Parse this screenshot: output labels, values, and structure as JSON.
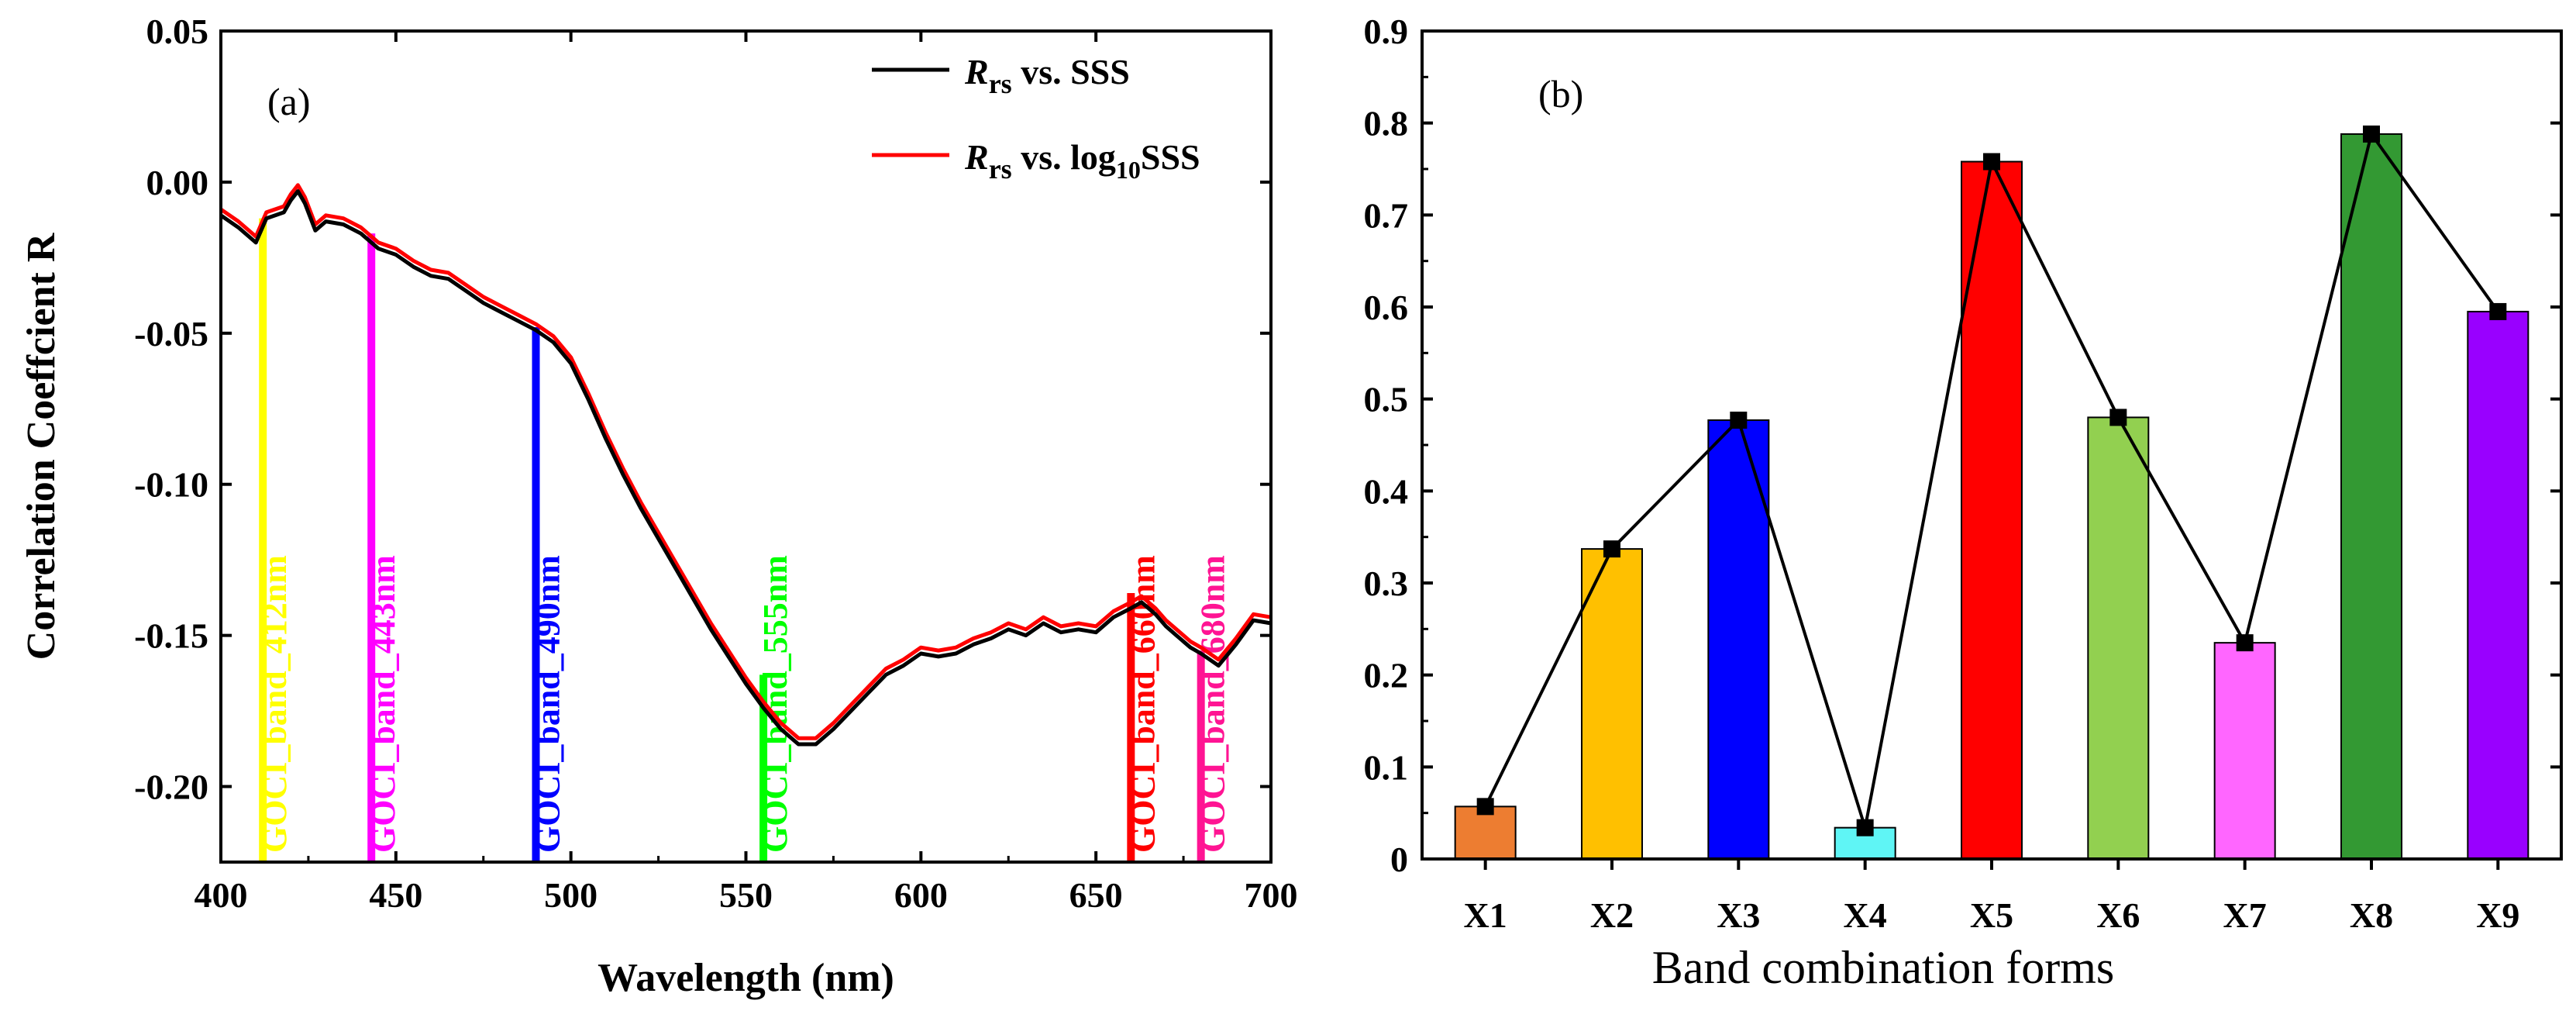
{
  "chart_data": [
    {
      "type": "line",
      "panel_label": "(a)",
      "xlabel": "Wavelength (nm)",
      "ylabel": "Correlation Coeffcient R",
      "xlim": [
        400,
        700
      ],
      "ylim": [
        -0.225,
        0.05
      ],
      "xticks": [
        400,
        450,
        500,
        550,
        600,
        650,
        700
      ],
      "yticks": [
        -0.2,
        -0.15,
        -0.1,
        -0.05,
        0.0,
        0.05
      ],
      "ytick_labels": [
        "-0.20",
        "-0.15",
        "-0.10",
        "-0.05",
        "0.00",
        "0.05"
      ],
      "legend": {
        "placement": "top-right"
      },
      "series": [
        {
          "name": "R_rs vs. SSS",
          "legend_main": "R",
          "legend_sub": "rs",
          "legend_rest": " vs. SSS",
          "color": "#000000",
          "x": [
            400,
            405,
            410,
            413,
            418,
            420,
            422,
            424,
            427,
            430,
            435,
            440,
            445,
            450,
            455,
            460,
            465,
            470,
            475,
            480,
            485,
            490,
            495,
            500,
            505,
            510,
            515,
            520,
            525,
            530,
            535,
            540,
            545,
            550,
            555,
            560,
            565,
            570,
            575,
            580,
            585,
            590,
            595,
            600,
            605,
            610,
            615,
            620,
            625,
            630,
            635,
            640,
            645,
            650,
            655,
            660,
            663,
            667,
            670,
            673,
            677,
            680,
            685,
            690,
            695,
            700
          ],
          "y": [
            -0.011,
            -0.015,
            -0.02,
            -0.012,
            -0.01,
            -0.006,
            -0.003,
            -0.007,
            -0.016,
            -0.013,
            -0.014,
            -0.017,
            -0.022,
            -0.024,
            -0.028,
            -0.031,
            -0.032,
            -0.036,
            -0.04,
            -0.043,
            -0.046,
            -0.049,
            -0.053,
            -0.06,
            -0.072,
            -0.085,
            -0.097,
            -0.108,
            -0.118,
            -0.128,
            -0.138,
            -0.148,
            -0.157,
            -0.166,
            -0.174,
            -0.181,
            -0.186,
            -0.186,
            -0.181,
            -0.175,
            -0.169,
            -0.163,
            -0.16,
            -0.156,
            -0.157,
            -0.156,
            -0.153,
            -0.151,
            -0.148,
            -0.15,
            -0.146,
            -0.149,
            -0.148,
            -0.149,
            -0.144,
            -0.141,
            -0.139,
            -0.143,
            -0.147,
            -0.15,
            -0.154,
            -0.156,
            -0.16,
            -0.153,
            -0.145,
            -0.146
          ]
        },
        {
          "name": "R_rs vs. log10SSS",
          "legend_main": "R",
          "legend_sub": "rs",
          "legend_rest": " vs. log",
          "legend_sub2": "10",
          "legend_rest2": "SSS",
          "color": "#ff0000",
          "x": [
            400,
            405,
            410,
            413,
            418,
            420,
            422,
            424,
            427,
            430,
            435,
            440,
            445,
            450,
            455,
            460,
            465,
            470,
            475,
            480,
            485,
            490,
            495,
            500,
            505,
            510,
            515,
            520,
            525,
            530,
            535,
            540,
            545,
            550,
            555,
            560,
            565,
            570,
            575,
            580,
            585,
            590,
            595,
            600,
            605,
            610,
            615,
            620,
            625,
            630,
            635,
            640,
            645,
            650,
            655,
            660,
            663,
            667,
            670,
            673,
            677,
            680,
            685,
            690,
            695,
            700
          ],
          "y": [
            -0.009,
            -0.013,
            -0.018,
            -0.01,
            -0.008,
            -0.004,
            -0.001,
            -0.005,
            -0.014,
            -0.011,
            -0.012,
            -0.015,
            -0.02,
            -0.022,
            -0.026,
            -0.029,
            -0.03,
            -0.034,
            -0.038,
            -0.041,
            -0.044,
            -0.047,
            -0.051,
            -0.058,
            -0.07,
            -0.083,
            -0.095,
            -0.106,
            -0.116,
            -0.126,
            -0.136,
            -0.146,
            -0.155,
            -0.164,
            -0.172,
            -0.179,
            -0.184,
            -0.184,
            -0.179,
            -0.173,
            -0.167,
            -0.161,
            -0.158,
            -0.154,
            -0.155,
            -0.154,
            -0.151,
            -0.149,
            -0.146,
            -0.148,
            -0.144,
            -0.147,
            -0.146,
            -0.147,
            -0.142,
            -0.139,
            -0.137,
            -0.141,
            -0.145,
            -0.148,
            -0.152,
            -0.154,
            -0.158,
            -0.151,
            -0.143,
            -0.144
          ]
        }
      ],
      "bands": [
        {
          "label": "GOCI_band_412nm",
          "x": 412,
          "top": -0.012,
          "color": "#ffff00"
        },
        {
          "label": "GOCI_band_443nm",
          "x": 443,
          "top": -0.017,
          "color": "#ff00ff"
        },
        {
          "label": "GOCI_band_490nm",
          "x": 490,
          "top": -0.048,
          "color": "#0000ff"
        },
        {
          "label": "GOCI_band_555nm",
          "x": 555,
          "top": -0.163,
          "color": "#00ff00"
        },
        {
          "label": "GOCI_band_660nm",
          "x": 660,
          "top": -0.136,
          "color": "#ff0000"
        },
        {
          "label": "GOCI_band_680nm",
          "x": 680,
          "top": -0.155,
          "color": "#ff1493"
        }
      ]
    },
    {
      "type": "bar",
      "panel_label": "(b)",
      "xlabel": "Band combination forms",
      "ylabel": "",
      "ylim": [
        0,
        0.9
      ],
      "yticks": [
        0,
        0.1,
        0.2,
        0.3,
        0.4,
        0.5,
        0.6,
        0.7,
        0.8,
        0.9
      ],
      "ytick_labels": [
        "0",
        "0.1",
        "0.2",
        "0.3",
        "0.4",
        "0.5",
        "0.6",
        "0.7",
        "0.8",
        "0.9"
      ],
      "categories": [
        "X1",
        "X2",
        "X3",
        "X4",
        "X5",
        "X6",
        "X7",
        "X8",
        "X9"
      ],
      "values": [
        0.057,
        0.337,
        0.477,
        0.034,
        0.758,
        0.48,
        0.235,
        0.788,
        0.595
      ],
      "colors": [
        "#ed7d31",
        "#ffc000",
        "#0000ff",
        "#5ff5f5",
        "#ff0000",
        "#92d050",
        "#ff66ff",
        "#339933",
        "#9900ff"
      ],
      "line_overlay": true,
      "line_color": "#000000"
    }
  ]
}
